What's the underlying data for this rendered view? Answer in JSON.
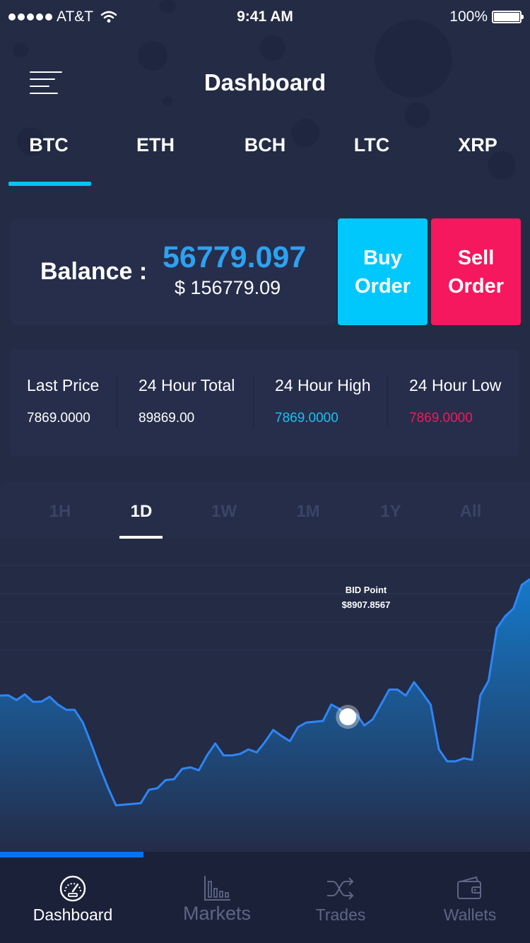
{
  "status_bar": {
    "carrier": "AT&T",
    "time": "9:41 AM",
    "battery": "100%",
    "icons": [
      "signal-dots-icon",
      "wifi-icon",
      "battery-icon"
    ]
  },
  "header": {
    "title": "Dashboard",
    "menu_icon": "hamburger-menu-icon"
  },
  "coin_tabs": [
    {
      "label": "BTC",
      "active": true
    },
    {
      "label": "ETH",
      "active": false
    },
    {
      "label": "BCH",
      "active": false
    },
    {
      "label": "LTC",
      "active": false
    },
    {
      "label": "XRP",
      "active": false
    }
  ],
  "balance": {
    "label": "Balance :",
    "amount": "56779.097",
    "usd": "$ 156779.09"
  },
  "actions": {
    "buy": {
      "line1": "Buy",
      "line2": "Order"
    },
    "sell": {
      "line1": "Sell",
      "line2": "Order"
    }
  },
  "stats": [
    {
      "label": "Last Price",
      "value": "7869.0000",
      "color": "#ffffff"
    },
    {
      "label": "24 Hour Total",
      "value": "89869.00",
      "color": "#ffffff"
    },
    {
      "label": "24 Hour High",
      "value": "7869.0000",
      "color": "#18c0f0"
    },
    {
      "label": "24 Hour Low",
      "value": "7869.0000",
      "color": "#ee1a5c"
    }
  ],
  "range_tabs": [
    {
      "label": "1H",
      "active": false
    },
    {
      "label": "1D",
      "active": true
    },
    {
      "label": "1W",
      "active": false
    },
    {
      "label": "1M",
      "active": false
    },
    {
      "label": "1Y",
      "active": false
    },
    {
      "label": "All",
      "active": false
    }
  ],
  "chart_data": {
    "type": "area",
    "title": "",
    "series": [
      {
        "values": [
          9050,
          9052,
          9020,
          9058,
          9008,
          9010,
          9042,
          8990,
          8955,
          8955,
          8870,
          8730,
          8580,
          8440,
          8316,
          8320,
          8325,
          8330,
          8420,
          8430,
          8485,
          8490,
          8560,
          8570,
          8550,
          8650,
          8730,
          8650,
          8650,
          8660,
          8690,
          8670,
          8740,
          8820,
          8780,
          8745,
          8840,
          8870,
          8875,
          8880,
          8990,
          8960,
          8907.8567,
          8930,
          8850,
          8890,
          8990,
          9090,
          9090,
          9050,
          9140,
          9068,
          8990,
          8690,
          8610,
          8610,
          8630,
          8620,
          9050,
          9150,
          9500,
          9580,
          9632,
          9790,
          9830
        ]
      }
    ],
    "ylim": [
      8000,
      10100
    ],
    "grid": true,
    "annotation": {
      "label": "BID Point",
      "value": "$8907.8567",
      "index": 42
    },
    "colors": {
      "line": "#2f85f5",
      "fill_top": "#1579c9",
      "fill_bottom": "#242c48"
    }
  },
  "bottom_nav": {
    "progress": 0.27,
    "items": [
      {
        "label": "Dashboard",
        "icon": "speedometer-icon",
        "active": true
      },
      {
        "label": "Markets",
        "icon": "bar-chart-icon",
        "active": false
      },
      {
        "label": "Trades",
        "icon": "shuffle-icon",
        "active": false
      },
      {
        "label": "Wallets",
        "icon": "wallet-icon",
        "active": false
      }
    ]
  },
  "colors": {
    "background": "#232b45",
    "card": "#262e4b",
    "accent_blue": "#00c8fc",
    "accent_pink": "#f5185e",
    "balance_blue": "#2ea1f0"
  }
}
